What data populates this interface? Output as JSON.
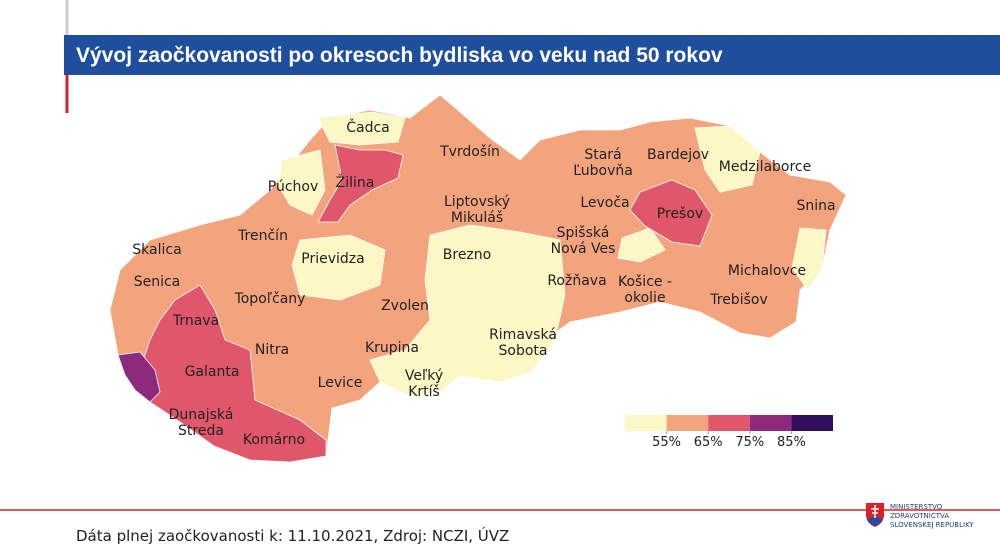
{
  "title": "Vývoj zaočkovanosti po okresoch bydliska vo veku nad 50 rokov",
  "map": {
    "labels": [
      [
        "Čadca"
      ],
      [
        "Tvrdošín"
      ],
      [
        "Stará",
        "Ľubovňa"
      ],
      [
        "Bardejov"
      ],
      [
        "Medzilaborce"
      ],
      [
        "Púchov"
      ],
      [
        "Žilina"
      ],
      [
        "Liptovský",
        "Mikuláš"
      ],
      [
        "Levoča"
      ],
      [
        "Prešov"
      ],
      [
        "Snina"
      ],
      [
        "Trenčín"
      ],
      [
        "Skalica"
      ],
      [
        "Prievidza"
      ],
      [
        "Brezno"
      ],
      [
        "Spišská",
        "Nová Ves"
      ],
      [
        "Michalovce"
      ],
      [
        "Senica"
      ],
      [
        "Rožňava"
      ],
      [
        "Košice -",
        "okolie"
      ],
      [
        "Topoľčany"
      ],
      [
        "Zvolen"
      ],
      [
        "Trebišov"
      ],
      [
        "Trnava"
      ],
      [
        "Rimavská",
        "Sobota"
      ],
      [
        "Nitra"
      ],
      [
        "Krupina"
      ],
      [
        "Galanta"
      ],
      [
        "Veľký",
        "Krtíš"
      ],
      [
        "Levice"
      ],
      [
        "Dunajská",
        "Streda"
      ],
      [
        "Komárno"
      ]
    ]
  },
  "legend": {
    "colors": [
      "#fbf8c6",
      "#f3a47c",
      "#e0566a",
      "#8e2a7e",
      "#2f0f5e"
    ],
    "ticks": [
      {
        "value": 55,
        "label": "55%"
      },
      {
        "value": 65,
        "label": "65%"
      },
      {
        "value": 75,
        "label": "75%"
      },
      {
        "value": 85,
        "label": "85%"
      }
    ]
  },
  "footer": "Dáta plnej zaočkovanosti k: 11.10.2021, Zdroj: NCZI, ÚVZ",
  "logo": [
    "MINISTERSTVO",
    "ZDRAVOTNÍCTVA",
    "SLOVENSKEJ REPUBLIKY"
  ]
}
